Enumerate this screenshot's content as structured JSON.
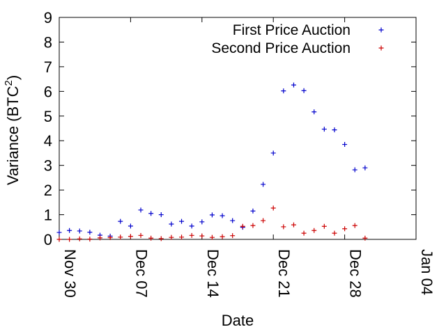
{
  "chart_data": {
    "type": "scatter",
    "title": "",
    "xlabel": "Date",
    "ylabel": "Variance (BTC",
    "ylabel_sup": "2",
    "ylabel_close": ")",
    "xlim": [
      0,
      35
    ],
    "ylim": [
      0,
      9
    ],
    "x_ticks": [
      {
        "value": 0,
        "label": "Nov 30"
      },
      {
        "value": 7,
        "label": "Dec 07"
      },
      {
        "value": 14,
        "label": "Dec 14"
      },
      {
        "value": 21,
        "label": "Dec 21"
      },
      {
        "value": 28,
        "label": "Dec 28"
      },
      {
        "value": 35,
        "label": "Jan 04"
      }
    ],
    "y_ticks": [
      0,
      1,
      2,
      3,
      4,
      5,
      6,
      7,
      8,
      9
    ],
    "legend_position": "top-right",
    "series": [
      {
        "name": "First Price Auction",
        "color": "#0000cc",
        "marker": "+",
        "points": [
          [
            0,
            0.28
          ],
          [
            1,
            0.36
          ],
          [
            2,
            0.34
          ],
          [
            3,
            0.29
          ],
          [
            4,
            0.17
          ],
          [
            5,
            0.13
          ],
          [
            6,
            0.73
          ],
          [
            7,
            0.54
          ],
          [
            8,
            1.19
          ],
          [
            9,
            1.05
          ],
          [
            10,
            1.0
          ],
          [
            11,
            0.62
          ],
          [
            12,
            0.73
          ],
          [
            13,
            0.54
          ],
          [
            14,
            0.71
          ],
          [
            15,
            0.99
          ],
          [
            16,
            0.96
          ],
          [
            17,
            0.76
          ],
          [
            18,
            0.49
          ],
          [
            19,
            1.15
          ],
          [
            20,
            2.23
          ],
          [
            21,
            3.5
          ],
          [
            22,
            6.02
          ],
          [
            23,
            6.26
          ],
          [
            24,
            6.03
          ],
          [
            25,
            5.17
          ],
          [
            26,
            4.47
          ],
          [
            27,
            4.44
          ],
          [
            28,
            3.85
          ],
          [
            29,
            2.82
          ],
          [
            30,
            2.9
          ]
        ]
      },
      {
        "name": "Second Price Auction",
        "color": "#cc0000",
        "marker": "+",
        "points": [
          [
            0,
            0.0
          ],
          [
            1,
            0.0
          ],
          [
            2,
            0.02
          ],
          [
            3,
            0.01
          ],
          [
            4,
            0.06
          ],
          [
            5,
            0.07
          ],
          [
            6,
            0.09
          ],
          [
            7,
            0.12
          ],
          [
            8,
            0.16
          ],
          [
            9,
            0.05
          ],
          [
            10,
            0.03
          ],
          [
            11,
            0.08
          ],
          [
            12,
            0.09
          ],
          [
            13,
            0.16
          ],
          [
            14,
            0.14
          ],
          [
            15,
            0.08
          ],
          [
            16,
            0.11
          ],
          [
            17,
            0.15
          ],
          [
            18,
            0.53
          ],
          [
            19,
            0.56
          ],
          [
            20,
            0.76
          ],
          [
            21,
            1.27
          ],
          [
            22,
            0.51
          ],
          [
            23,
            0.59
          ],
          [
            24,
            0.25
          ],
          [
            25,
            0.36
          ],
          [
            26,
            0.53
          ],
          [
            27,
            0.25
          ],
          [
            28,
            0.43
          ],
          [
            29,
            0.56
          ],
          [
            30,
            0.05
          ]
        ]
      }
    ]
  }
}
